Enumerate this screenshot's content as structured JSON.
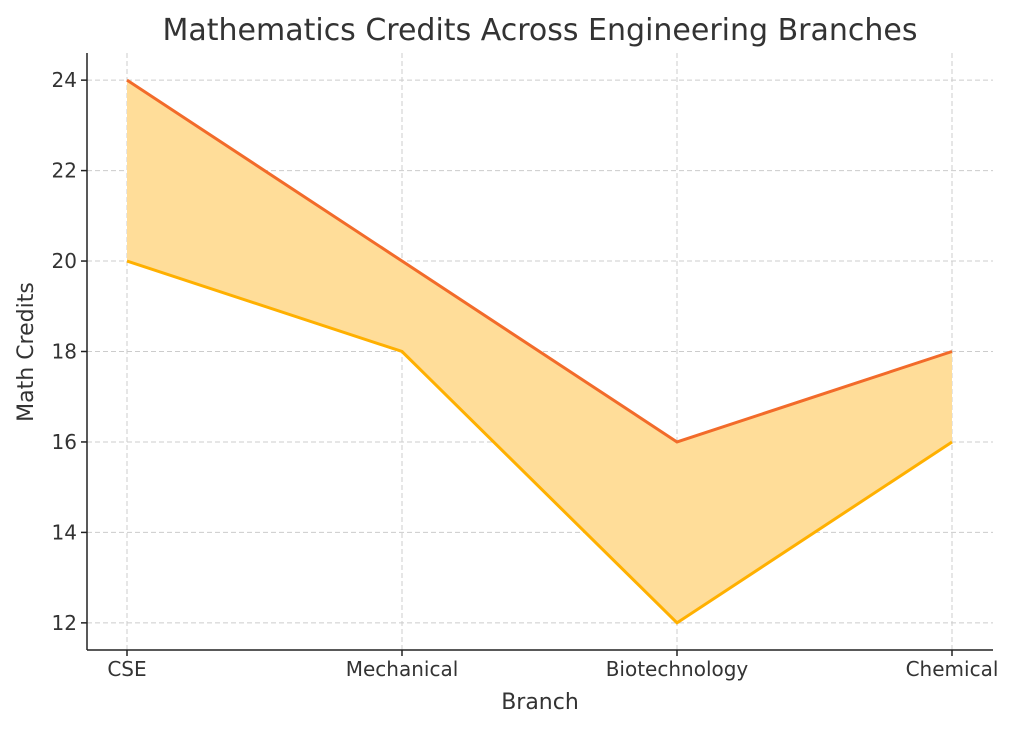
{
  "chart_data": {
    "type": "area",
    "title": "Mathematics Credits Across Engineering Branches",
    "xlabel": "Branch",
    "ylabel": "Math Credits",
    "categories": [
      "CSE",
      "Mechanical",
      "Biotechnology",
      "Chemical"
    ],
    "series": [
      {
        "values": [
          24,
          20,
          16,
          18
        ],
        "color": "#F26B2A"
      },
      {
        "values": [
          20,
          18,
          12,
          16
        ],
        "color": "#FFB000"
      }
    ],
    "fill_color": "#FFDD99",
    "yticks": [
      12,
      14,
      16,
      18,
      20,
      22,
      24
    ],
    "ylim": [
      11.4,
      24.6
    ],
    "grid": true
  }
}
